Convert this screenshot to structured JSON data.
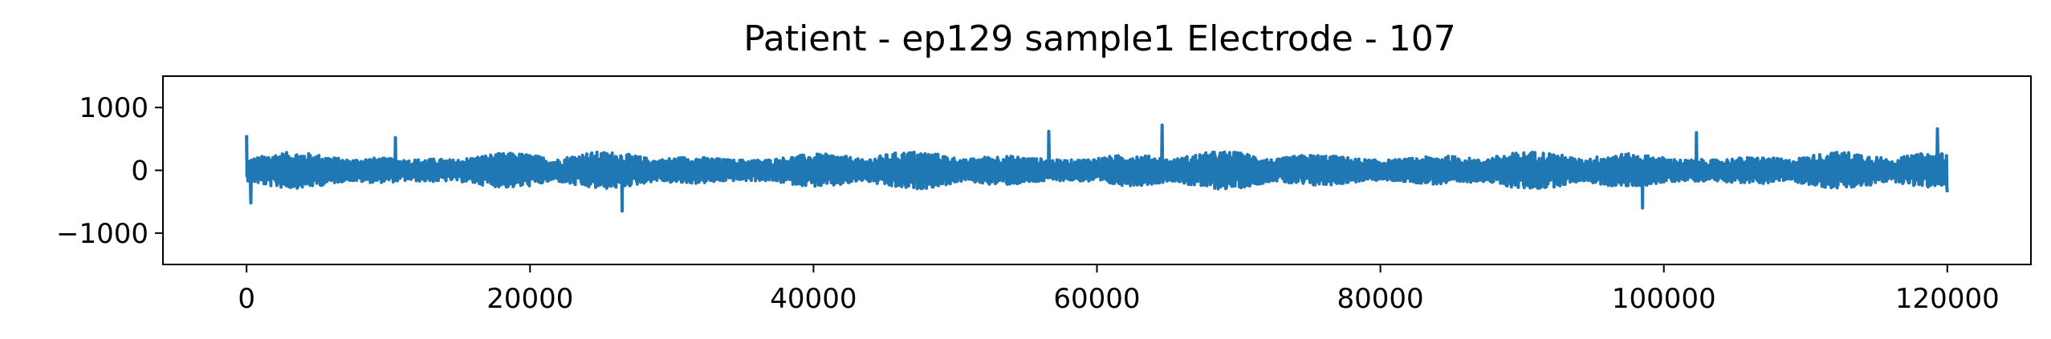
{
  "chart_data": {
    "type": "line",
    "title": "Patient - ep129 sample1 Electrode - 107",
    "xlabel": "",
    "ylabel": "",
    "xlim": [
      -5900,
      125900
    ],
    "ylim": [
      -1500,
      1500
    ],
    "x_ticks": [
      0,
      20000,
      40000,
      60000,
      80000,
      100000,
      120000
    ],
    "x_tick_labels": [
      "0",
      "20000",
      "40000",
      "60000",
      "80000",
      "100000",
      "120000"
    ],
    "y_ticks": [
      1000,
      0,
      -1000
    ],
    "y_tick_labels": [
      "1000",
      "0",
      "−1000"
    ],
    "grid": false,
    "legend": "none",
    "series": [
      {
        "color": "#1f77b4",
        "x_range": [
          0,
          120000
        ],
        "y_range": [
          -660,
          720
        ],
        "typical_amplitude": [
          -300,
          300
        ],
        "peaks": [
          {
            "x": 0,
            "y": 560
          },
          {
            "x": 300,
            "y": -520
          },
          {
            "x": 10500,
            "y": 520
          },
          {
            "x": 26500,
            "y": -650
          },
          {
            "x": 56600,
            "y": 620
          },
          {
            "x": 64600,
            "y": 720
          },
          {
            "x": 98500,
            "y": -600
          },
          {
            "x": 102300,
            "y": 600
          },
          {
            "x": 119300,
            "y": 660
          },
          {
            "x": 120000,
            "y": -350
          }
        ]
      }
    ]
  }
}
